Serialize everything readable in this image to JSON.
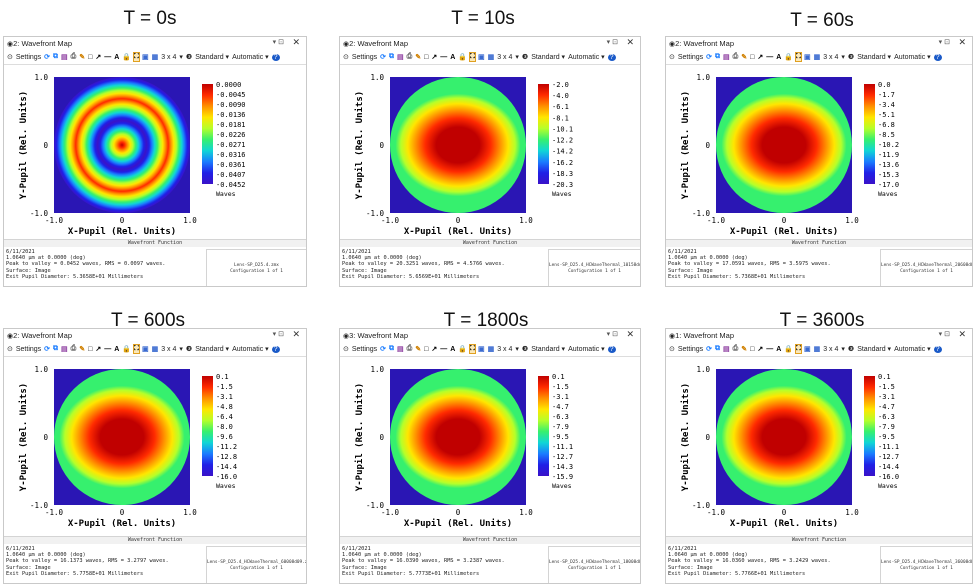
{
  "panels": [
    {
      "title": "T = 0s",
      "window_title": "2: Wavefront Map",
      "colorbar": [
        "0.0000",
        "-0.0045",
        "-0.0090",
        "-0.0136",
        "-0.0181",
        "-0.0226",
        "-0.0271",
        "-0.0316",
        "-0.0361",
        "-0.0407",
        "-0.0452"
      ],
      "info": [
        "6/11/2021",
        "1.0640 µm at 0.0000 (deg)",
        "Peak to valley = 0.0452 waves, RMS = 0.0097 waves.",
        "Surface: Image",
        "Exit Pupil Diameter: 5.3658E+01 Millimeters"
      ],
      "lens": "Lens-SP_D25.4.zmx",
      "config": "Configuration 1 of 1",
      "pattern": "rings"
    },
    {
      "title": "T = 10s",
      "window_title": "2: Wavefront Map",
      "colorbar": [
        "-2.0",
        "-4.0",
        "-6.1",
        "-8.1",
        "-10.1",
        "-12.2",
        "-14.2",
        "-16.2",
        "-18.3",
        "-20.3"
      ],
      "info": [
        "6/11/2021",
        "1.0640 µm at 0.0000 (deg)",
        "Peak to valley = 20.3251 waves, RMS = 4.5766 waves.",
        "Surface: Image",
        "Exit Pupil Diameter: 5.6569E+01 Millimeters"
      ],
      "lens": "Lens-SP_D25.4_HCWaveThermal_10158dd9.zmx",
      "config": "Configuration 1 of 1",
      "pattern": "thermal"
    },
    {
      "title": "T = 60s",
      "window_title": "2: Wavefront Map",
      "colorbar": [
        "0.0",
        "-1.7",
        "-3.4",
        "-5.1",
        "-6.8",
        "-8.5",
        "-10.2",
        "-11.9",
        "-13.6",
        "-15.3",
        "-17.0"
      ],
      "info": [
        "6/11/2021",
        "1.0640 µm at 0.0000 (deg)",
        "Peak to valley = 17.0591 waves, RMS = 3.5975 waves.",
        "Surface: Image",
        "Exit Pupil Diameter: 5.7368E+01 Millimeters"
      ],
      "lens": "Lens-SP_D25.4_HCWaveThermal_20608d09.zmx",
      "config": "Configuration 1 of 1",
      "pattern": "thermal"
    },
    {
      "title": "T = 600s",
      "window_title": "2: Wavefront Map",
      "colorbar": [
        "0.1",
        "-1.5",
        "-3.1",
        "-4.8",
        "-6.4",
        "-8.0",
        "-9.6",
        "-11.2",
        "-12.8",
        "-14.4",
        "-16.0"
      ],
      "info": [
        "6/11/2021",
        "1.0640 µm at 0.0000 (deg)",
        "Peak to valley = 16.1373 waves, RMS = 3.2797 waves.",
        "Surface: Image",
        "Exit Pupil Diameter: 5.7758E+01 Millimeters"
      ],
      "lens": "Lens-SP_D25.4_HCWaveThermal_60008d09.zmx",
      "config": "Configuration 1 of 1",
      "pattern": "thermal"
    },
    {
      "title": "T = 1800s",
      "window_title": "3: Wavefront Map",
      "colorbar": [
        "0.1",
        "-1.5",
        "-3.1",
        "-4.7",
        "-6.3",
        "-7.9",
        "-9.5",
        "-11.1",
        "-12.7",
        "-14.3",
        "-15.9"
      ],
      "info": [
        "6/11/2021",
        "1.0640 µm at 0.0000 (deg)",
        "Peak to valley = 16.0390 waves, RMS = 3.2387 waves.",
        "Surface: Image",
        "Exit Pupil Diameter: 5.7773E+01 Millimeters"
      ],
      "lens": "Lens-SP_D25.4_HCWaveThermal_18008d09.zmx",
      "config": "Configuration 1 of 1",
      "pattern": "thermal"
    },
    {
      "title": "T = 3600s",
      "window_title": "1: Wavefront Map",
      "colorbar": [
        "0.1",
        "-1.5",
        "-3.1",
        "-4.7",
        "-6.3",
        "-7.9",
        "-9.5",
        "-11.1",
        "-12.7",
        "-14.4",
        "-16.0"
      ],
      "info": [
        "6/11/2021",
        "1.0640 µm at 0.0000 (deg)",
        "Peak to valley = 16.0360 waves, RMS = 3.2429 waves.",
        "Surface: Image",
        "Exit Pupil Diameter: 5.7766E+01 Millimeters"
      ],
      "lens": "Lens-SP_D25.4_HCWaveThermal_36008d09.zmx",
      "config": "Configuration 1 of 1",
      "pattern": "thermal"
    }
  ],
  "common": {
    "toolbar": {
      "settings": "Settings",
      "grid": "3 x 4",
      "standard": "Standard",
      "automatic": "Automatic",
      "help": "?"
    },
    "x_label": "X-Pupil (Rel. Units)",
    "y_label": "Y-Pupil (Rel. Units)",
    "x_ticks": [
      "-1.0",
      "0",
      "1.0"
    ],
    "y_ticks": [
      "1.0",
      "0",
      "-1.0"
    ],
    "colorbar_unit": "Waves",
    "bottom_title": "Wavefront Function"
  },
  "colors": {
    "map": [
      "#c00000",
      "#ff2a00",
      "#ff9000",
      "#ffe600",
      "#b6ff2a",
      "#36f06e",
      "#10d6d6",
      "#1a7cff",
      "#2020e6",
      "#3a12c8"
    ],
    "accent": "#e0a020"
  }
}
